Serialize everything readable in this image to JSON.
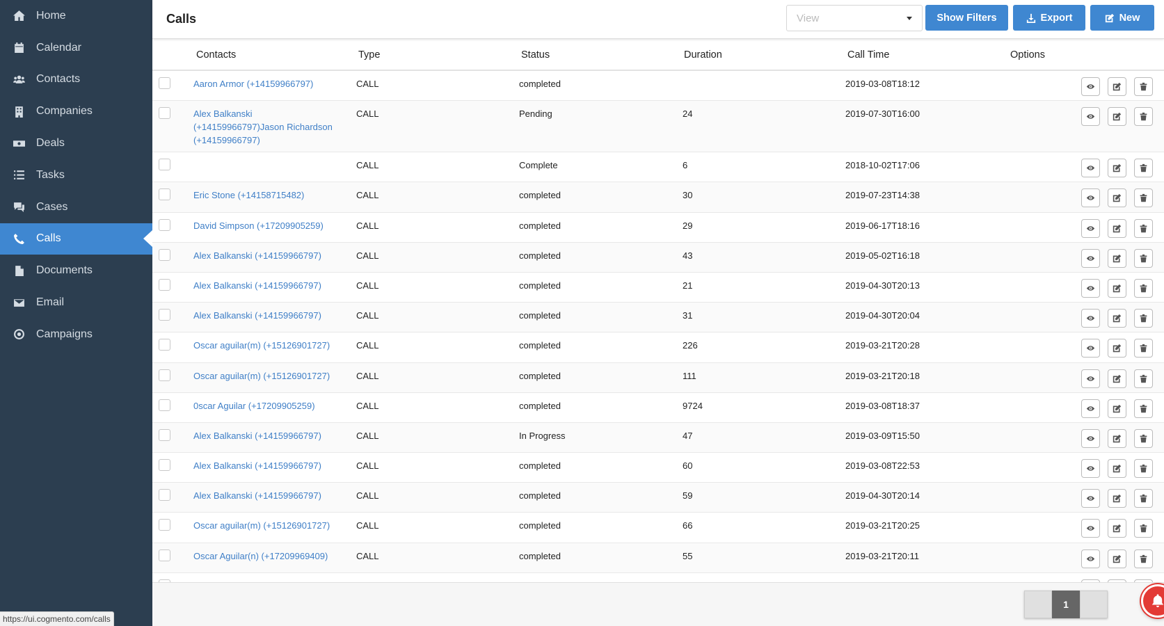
{
  "sidebar": {
    "items": [
      {
        "label": "Home",
        "icon": "home-icon"
      },
      {
        "label": "Calendar",
        "icon": "calendar-icon"
      },
      {
        "label": "Contacts",
        "icon": "users-icon"
      },
      {
        "label": "Companies",
        "icon": "building-icon"
      },
      {
        "label": "Deals",
        "icon": "money-icon"
      },
      {
        "label": "Tasks",
        "icon": "tasks-icon"
      },
      {
        "label": "Cases",
        "icon": "comments-icon"
      },
      {
        "label": "Calls",
        "icon": "phone-icon",
        "active": true
      },
      {
        "label": "Documents",
        "icon": "file-icon"
      },
      {
        "label": "Email",
        "icon": "envelope-icon"
      },
      {
        "label": "Campaigns",
        "icon": "bullseye-icon"
      }
    ],
    "status_url": "https://ui.cogmento.com/calls"
  },
  "header": {
    "title": "Calls",
    "view_placeholder": "View",
    "show_filters": "Show Filters",
    "export": "Export",
    "new": "New"
  },
  "table": {
    "columns": {
      "contacts": "Contacts",
      "type": "Type",
      "status": "Status",
      "duration": "Duration",
      "call_time": "Call Time",
      "options": "Options"
    },
    "rows": [
      {
        "contact": "Aaron Armor (+14159966797)",
        "type": "CALL",
        "status": "completed",
        "duration": "",
        "call_time": "2019-03-08T18:12"
      },
      {
        "contact": "Alex Balkanski (+14159966797)Jason Richardson (+14159966797)",
        "type": "CALL",
        "status": "Pending",
        "duration": "24",
        "call_time": "2019-07-30T16:00"
      },
      {
        "contact": "",
        "type": "CALL",
        "status": "Complete",
        "duration": "6",
        "call_time": "2018-10-02T17:06"
      },
      {
        "contact": "Eric Stone (+14158715482)",
        "type": "CALL",
        "status": "completed",
        "duration": "30",
        "call_time": "2019-07-23T14:38"
      },
      {
        "contact": "David Simpson (+17209905259)",
        "type": "CALL",
        "status": "completed",
        "duration": "29",
        "call_time": "2019-06-17T18:16"
      },
      {
        "contact": "Alex Balkanski (+14159966797)",
        "type": "CALL",
        "status": "completed",
        "duration": "43",
        "call_time": "2019-05-02T16:18"
      },
      {
        "contact": "Alex Balkanski (+14159966797)",
        "type": "CALL",
        "status": "completed",
        "duration": "21",
        "call_time": "2019-04-30T20:13"
      },
      {
        "contact": "Alex Balkanski (+14159966797)",
        "type": "CALL",
        "status": "completed",
        "duration": "31",
        "call_time": "2019-04-30T20:04"
      },
      {
        "contact": "Oscar aguilar(m) (+15126901727)",
        "type": "CALL",
        "status": "completed",
        "duration": "226",
        "call_time": "2019-03-21T20:28"
      },
      {
        "contact": "Oscar aguilar(m) (+15126901727)",
        "type": "CALL",
        "status": "completed",
        "duration": "111",
        "call_time": "2019-03-21T20:18"
      },
      {
        "contact": "0scar Aguilar (+17209905259)",
        "type": "CALL",
        "status": "completed",
        "duration": "9724",
        "call_time": "2019-03-08T18:37"
      },
      {
        "contact": "Alex Balkanski (+14159966797)",
        "type": "CALL",
        "status": "In Progress",
        "duration": "47",
        "call_time": "2019-03-09T15:50"
      },
      {
        "contact": "Alex Balkanski (+14159966797)",
        "type": "CALL",
        "status": "completed",
        "duration": "60",
        "call_time": "2019-03-08T22:53"
      },
      {
        "contact": "Alex Balkanski (+14159966797)",
        "type": "CALL",
        "status": "completed",
        "duration": "59",
        "call_time": "2019-04-30T20:14"
      },
      {
        "contact": "Oscar aguilar(m) (+15126901727)",
        "type": "CALL",
        "status": "completed",
        "duration": "66",
        "call_time": "2019-03-21T20:25"
      },
      {
        "contact": "Oscar Aguilar(n) (+17209969409)",
        "type": "CALL",
        "status": "completed",
        "duration": "55",
        "call_time": "2019-03-21T20:11"
      },
      {
        "contact": "",
        "type": "",
        "status": "",
        "duration": "",
        "call_time": ""
      }
    ]
  },
  "pagination": {
    "current_page": "1"
  }
}
